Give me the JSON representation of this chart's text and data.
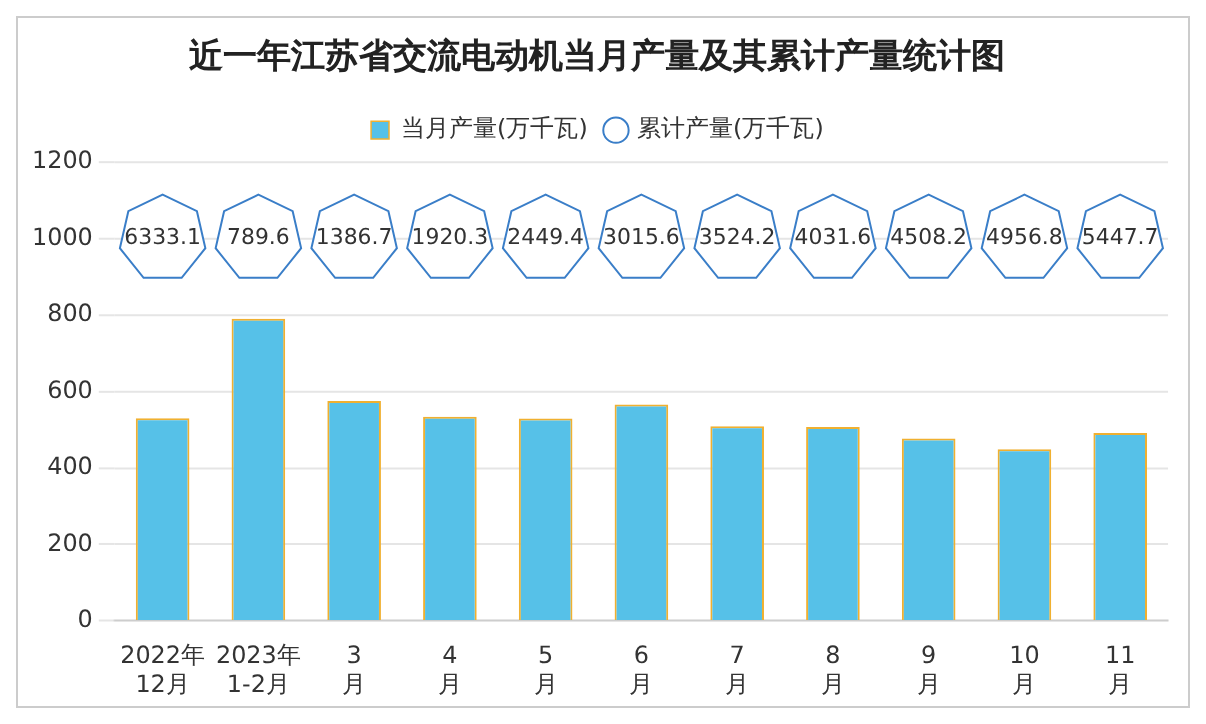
{
  "chart_data": {
    "type": "bar",
    "title": "近一年江苏省交流电动机当月产量及其累计产量统计图",
    "categories": [
      "2022年\n12月",
      "2023年\n1-2月",
      "3\n月",
      "4\n月",
      "5\n月",
      "6\n月",
      "7\n月",
      "8\n月",
      "9\n月",
      "10\n月",
      "11\n月"
    ],
    "series": [
      {
        "name": "当月产量(万千瓦)",
        "color": "#56c1e8",
        "values": [
          530,
          790,
          575,
          534,
          529,
          566,
          509,
          507,
          477,
          449,
          491
        ]
      },
      {
        "name": "累计产量(万千瓦)",
        "type": "scatter",
        "color": "#3a7ec8",
        "values": [
          null,
          null,
          null,
          null,
          null,
          null,
          null,
          null,
          null,
          null,
          null
        ]
      }
    ],
    "annotations": [
      {
        "text": "6333.1",
        "x": "2022年\n12月",
        "y": 1000
      },
      {
        "text": "789.6",
        "x": "2023年\n1-2月",
        "y": 1000
      },
      {
        "text": "1386.7",
        "x": "3\n月",
        "y": 1000
      },
      {
        "text": "1920.3",
        "x": "4\n月",
        "y": 1000
      },
      {
        "text": "2449.4",
        "x": "5\n月",
        "y": 1000
      },
      {
        "text": "3015.6",
        "x": "6\n月",
        "y": 1000
      },
      {
        "text": "3524.2",
        "x": "7\n月",
        "y": 1000
      },
      {
        "text": "4031.6",
        "x": "8\n月",
        "y": 1000
      },
      {
        "text": "4508.2",
        "x": "9\n月",
        "y": 1000
      },
      {
        "text": "4956.8",
        "x": "10\n月",
        "y": 1000
      },
      {
        "text": "5447.7",
        "x": "11\n月",
        "y": 1000
      }
    ],
    "ylim": [
      0,
      1200
    ],
    "yticks": [
      0,
      200,
      400,
      600,
      800,
      1000,
      1200
    ],
    "grid": "y",
    "legend": "top"
  }
}
